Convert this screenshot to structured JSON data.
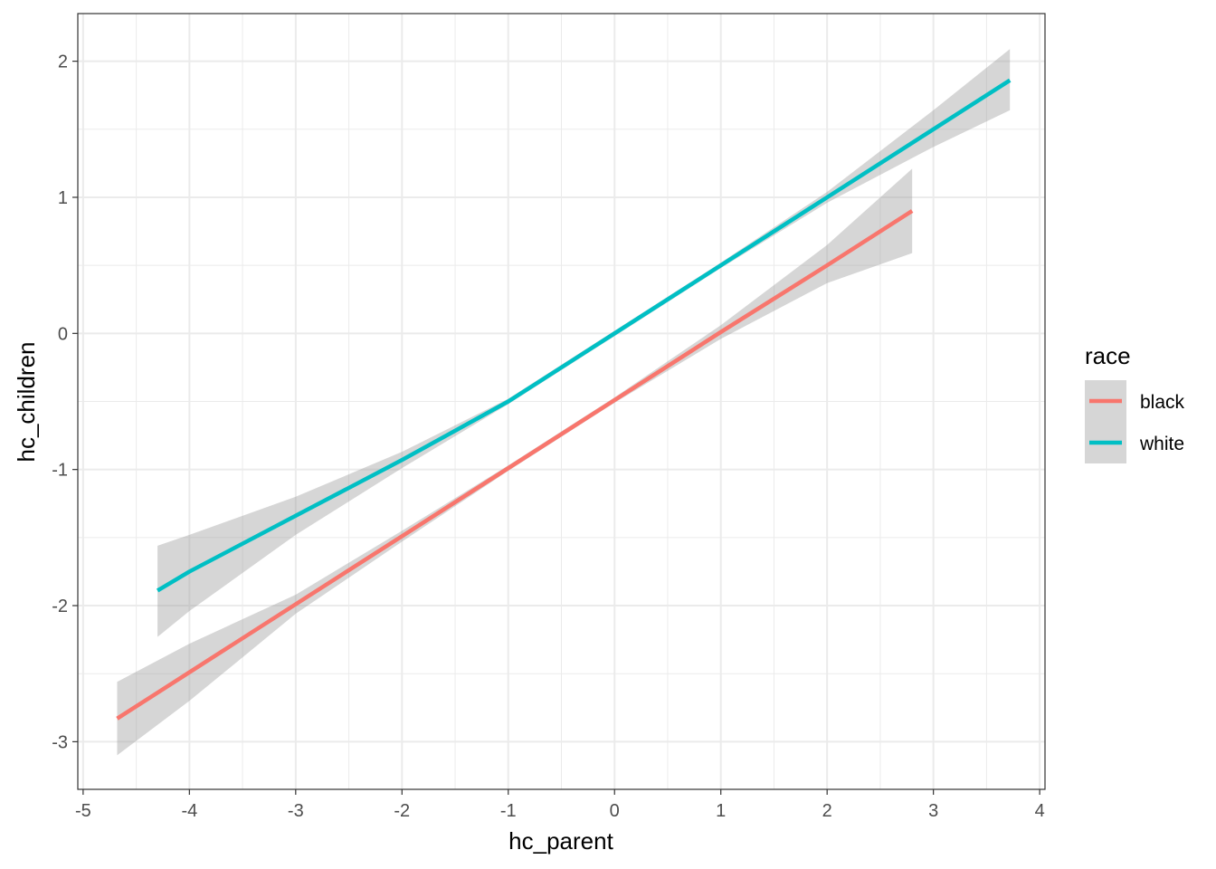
{
  "chart_data": {
    "type": "line",
    "title": "",
    "xlabel": "hc_parent",
    "ylabel": "hc_children",
    "xlim": [
      -5.05,
      4.05
    ],
    "ylim": [
      -3.35,
      2.35
    ],
    "x_ticks": [
      -5,
      -4,
      -3,
      -2,
      -1,
      0,
      1,
      2,
      3,
      4
    ],
    "x_tick_labels": [
      "-5",
      "-4",
      "-3",
      "-2",
      "-1",
      "0",
      "1",
      "2",
      "3",
      "4"
    ],
    "y_ticks": [
      -3,
      -2,
      -1,
      0,
      1,
      2
    ],
    "y_tick_labels": [
      "-3",
      "-2",
      "-1",
      "0",
      "1",
      "2"
    ],
    "grid": true,
    "legend": {
      "title": "race",
      "position": "right"
    },
    "series": [
      {
        "name": "black",
        "color": "#F8766D",
        "x": [
          -4.68,
          -4.0,
          -3.0,
          -2.0,
          -1.0,
          0.0,
          1.0,
          2.0,
          2.8
        ],
        "y": [
          -2.83,
          -2.49,
          -1.99,
          -1.49,
          -0.99,
          -0.49,
          0.01,
          0.5,
          0.9
        ],
        "lower": [
          -3.1,
          -2.7,
          -2.06,
          -1.53,
          -1.01,
          -0.51,
          -0.04,
          0.37,
          0.59
        ],
        "upper": [
          -2.56,
          -2.28,
          -1.92,
          -1.45,
          -0.97,
          -0.47,
          0.06,
          0.65,
          1.21
        ]
      },
      {
        "name": "white",
        "color": "#00BFC4",
        "x": [
          -4.3,
          -4.0,
          -3.0,
          -2.0,
          -1.0,
          0.0,
          1.0,
          2.0,
          3.0,
          3.72
        ],
        "y": [
          -1.89,
          -1.75,
          -1.34,
          -0.93,
          -0.5,
          0.0,
          0.5,
          1.0,
          1.5,
          1.86
        ],
        "lower": [
          -2.23,
          -2.04,
          -1.48,
          -0.99,
          -0.52,
          -0.02,
          0.48,
          0.96,
          1.37,
          1.64
        ],
        "upper": [
          -1.56,
          -1.48,
          -1.2,
          -0.87,
          -0.48,
          0.02,
          0.52,
          1.04,
          1.64,
          2.09
        ]
      }
    ],
    "ribbon_color": "#999999"
  }
}
